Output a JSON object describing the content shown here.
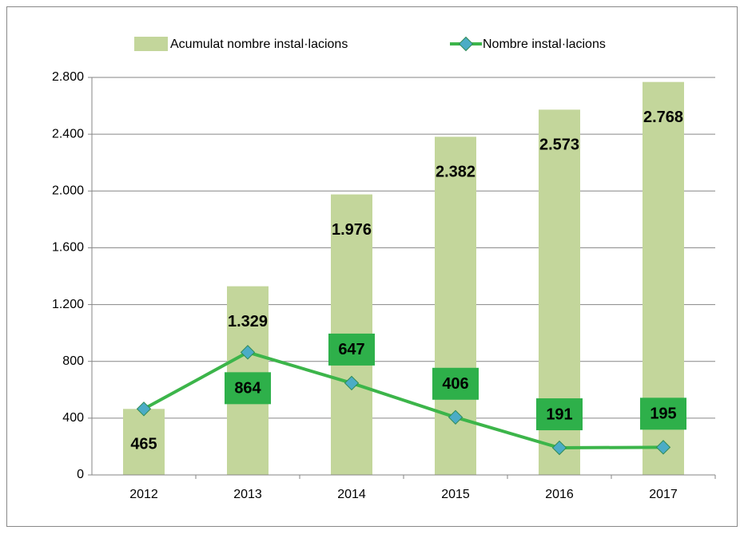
{
  "chart_data": {
    "type": "bar+line",
    "categories": [
      "2012",
      "2013",
      "2014",
      "2015",
      "2016",
      "2017"
    ],
    "series": [
      {
        "name": "Acumulat nombre instal·lacions",
        "type": "bar",
        "color": "#c3d69b",
        "values": [
          465,
          1329,
          1976,
          2382,
          2573,
          2768
        ],
        "value_labels": [
          "465",
          "1.329",
          "1.976",
          "2.382",
          "2.573",
          "2.768"
        ]
      },
      {
        "name": "Nombre instal·lacions",
        "type": "line",
        "color": "#3cb54a",
        "marker_color": "#4bacc6",
        "label_box": "#2eb04a",
        "values": [
          465,
          864,
          647,
          406,
          191,
          195
        ],
        "value_labels": [
          null,
          "864",
          "647",
          "406",
          "191",
          "195"
        ]
      }
    ],
    "ylim": [
      0,
      2800
    ],
    "yticks": [
      0,
      400,
      {
        "value": 800,
        "label": "800"
      },
      {
        "value": 1200,
        "label": "1.200"
      },
      {
        "value": 1600,
        "label": "1.600"
      },
      {
        "value": 2000,
        "label": "2.000"
      },
      {
        "value": 2400,
        "label": "2.400"
      },
      {
        "value": 2800,
        "label": "2.800"
      }
    ],
    "grid": true,
    "legend": "top"
  }
}
